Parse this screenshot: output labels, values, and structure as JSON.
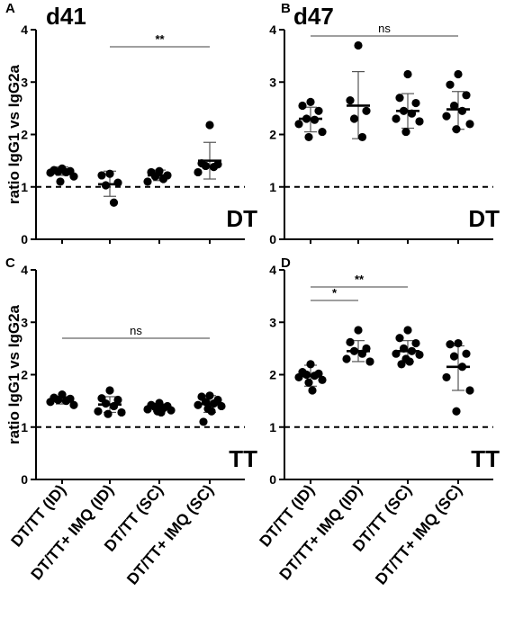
{
  "figure": {
    "ylabel": "ratio IgG1 vs IgG2a",
    "yticks": [
      "0",
      "1",
      "2",
      "3",
      "4"
    ],
    "categories": [
      "DT/TT (ID)",
      "DT/TT+ IMQ (ID)",
      "DT/TT (SC)",
      "DT/TT+ IMQ (SC)"
    ]
  },
  "chart_data": [
    {
      "type": "scatter",
      "panel": "A",
      "title": "d41",
      "antigen": "DT",
      "ylabel": "ratio IgG1 vs IgG2a",
      "ylim": [
        0,
        4
      ],
      "reference_line": 1,
      "categories": [
        "DT/TT (ID)",
        "DT/TT+ IMQ (ID)",
        "DT/TT (SC)",
        "DT/TT+ IMQ (SC)"
      ],
      "groups": [
        {
          "points": [
            1.35,
            1.32,
            1.3,
            1.29,
            1.28,
            1.27,
            1.2,
            1.1
          ],
          "mean": 1.3,
          "sd_low": 1.22,
          "sd_high": 1.38
        },
        {
          "points": [
            1.25,
            1.22,
            1.08,
            1.03,
            0.7
          ],
          "mean": 1.05,
          "sd_low": 0.82,
          "sd_high": 1.3
        },
        {
          "points": [
            1.3,
            1.28,
            1.22,
            1.2,
            1.15,
            1.1
          ],
          "mean": 1.22,
          "sd_low": 1.12,
          "sd_high": 1.32
        },
        {
          "points": [
            2.18,
            1.45,
            1.43,
            1.4,
            1.38,
            1.28
          ],
          "mean": 1.5,
          "sd_low": 1.15,
          "sd_high": 1.85
        }
      ],
      "comparisons": [
        {
          "label": "**",
          "from": 1,
          "to": 3
        }
      ]
    },
    {
      "type": "scatter",
      "panel": "B",
      "title": "d47",
      "antigen": "DT",
      "ylim": [
        0,
        4
      ],
      "reference_line": 1,
      "categories": [
        "DT/TT (ID)",
        "DT/TT+ IMQ (ID)",
        "DT/TT (SC)",
        "DT/TT+ IMQ (SC)"
      ],
      "groups": [
        {
          "points": [
            2.62,
            2.55,
            2.45,
            2.3,
            2.28,
            2.2,
            2.05,
            1.95
          ],
          "mean": 2.3,
          "sd_low": 2.05,
          "sd_high": 2.52
        },
        {
          "points": [
            3.7,
            2.65,
            2.45,
            2.3,
            1.95
          ],
          "mean": 2.55,
          "sd_low": 1.92,
          "sd_high": 3.2
        },
        {
          "points": [
            3.15,
            2.7,
            2.6,
            2.45,
            2.4,
            2.3,
            2.25,
            2.05
          ],
          "mean": 2.45,
          "sd_low": 2.12,
          "sd_high": 2.78
        },
        {
          "points": [
            3.15,
            2.95,
            2.75,
            2.55,
            2.45,
            2.35,
            2.2,
            2.1
          ],
          "mean": 2.48,
          "sd_low": 2.1,
          "sd_high": 2.82
        }
      ],
      "comparisons": [
        {
          "label": "ns",
          "from": 0,
          "to": 3
        }
      ]
    },
    {
      "type": "scatter",
      "panel": "C",
      "antigen": "TT",
      "ylabel": "ratio IgG1 vs IgG2a",
      "ylim": [
        0,
        4
      ],
      "reference_line": 1,
      "categories": [
        "DT/TT (ID)",
        "DT/TT+ IMQ (ID)",
        "DT/TT (SC)",
        "DT/TT+ IMQ (SC)"
      ],
      "groups": [
        {
          "points": [
            1.62,
            1.56,
            1.54,
            1.52,
            1.5,
            1.48,
            1.42
          ],
          "mean": 1.51,
          "sd_low": 1.44,
          "sd_high": 1.58
        },
        {
          "points": [
            1.7,
            1.55,
            1.52,
            1.45,
            1.4,
            1.3,
            1.28,
            1.25
          ],
          "mean": 1.43,
          "sd_low": 1.28,
          "sd_high": 1.58
        },
        {
          "points": [
            1.46,
            1.42,
            1.4,
            1.38,
            1.36,
            1.34,
            1.32,
            1.3,
            1.28
          ],
          "mean": 1.37,
          "sd_low": 1.3,
          "sd_high": 1.44
        },
        {
          "points": [
            1.6,
            1.58,
            1.52,
            1.48,
            1.45,
            1.42,
            1.4,
            1.35,
            1.3,
            1.1
          ],
          "mean": 1.44,
          "sd_low": 1.28,
          "sd_high": 1.6
        }
      ],
      "comparisons": [
        {
          "label": "ns",
          "from": 0,
          "to": 3
        }
      ]
    },
    {
      "type": "scatter",
      "panel": "D",
      "antigen": "TT",
      "ylim": [
        0,
        4
      ],
      "reference_line": 1,
      "categories": [
        "DT/TT (ID)",
        "DT/TT+ IMQ (ID)",
        "DT/TT (SC)",
        "DT/TT+ IMQ (SC)"
      ],
      "groups": [
        {
          "points": [
            2.2,
            2.05,
            2.02,
            2.0,
            1.98,
            1.95,
            1.9,
            1.85,
            1.7
          ],
          "mean": 1.98,
          "sd_low": 1.78,
          "sd_high": 2.18
        },
        {
          "points": [
            2.85,
            2.62,
            2.5,
            2.45,
            2.4,
            2.3,
            2.25
          ],
          "mean": 2.45,
          "sd_low": 2.25,
          "sd_high": 2.65
        },
        {
          "points": [
            2.85,
            2.7,
            2.6,
            2.5,
            2.45,
            2.4,
            2.38,
            2.3,
            2.25,
            2.2
          ],
          "mean": 2.45,
          "sd_low": 2.25,
          "sd_high": 2.65
        },
        {
          "points": [
            2.6,
            2.58,
            2.4,
            2.35,
            2.15,
            1.95,
            1.7,
            1.3
          ],
          "mean": 2.15,
          "sd_low": 1.7,
          "sd_high": 2.55
        }
      ],
      "comparisons": [
        {
          "label": "*",
          "from": 0,
          "to": 1
        },
        {
          "label": "**",
          "from": 0,
          "to": 2
        }
      ]
    }
  ]
}
